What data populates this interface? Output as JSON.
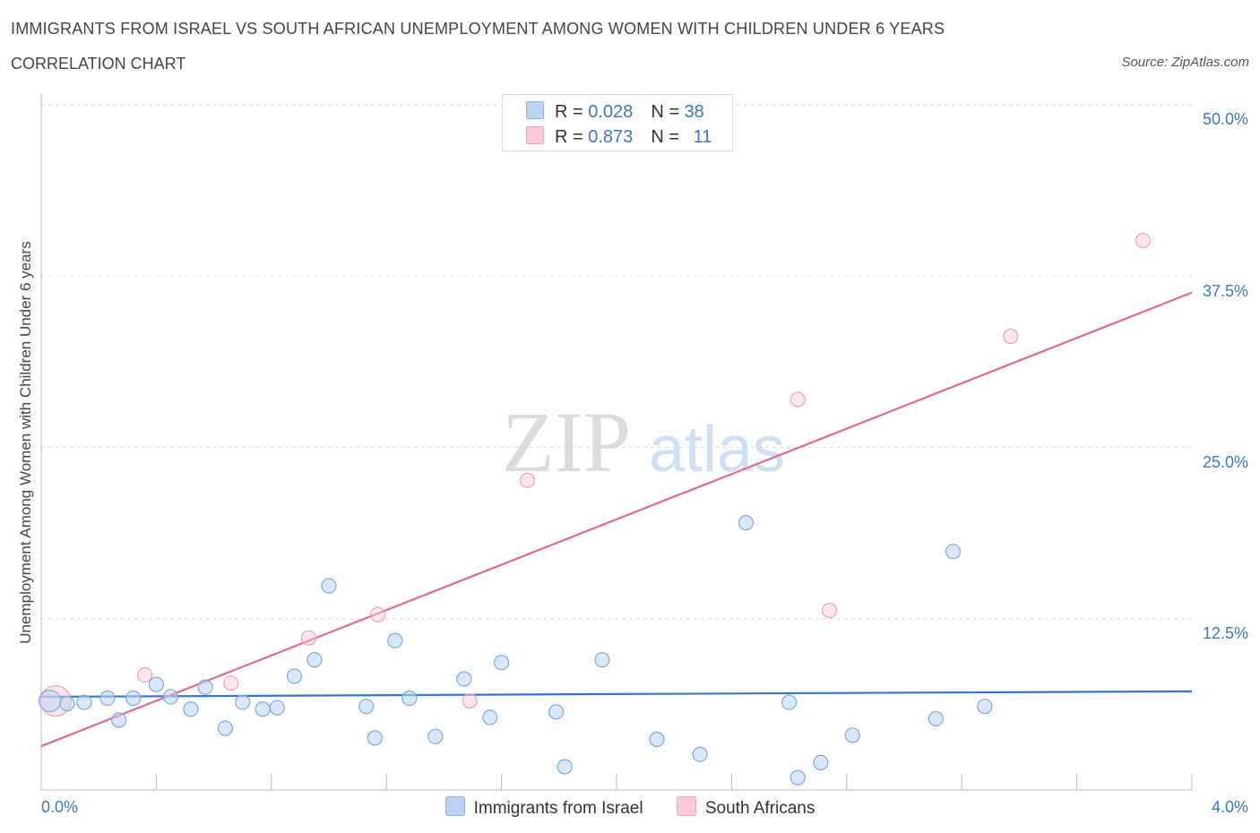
{
  "title": "IMMIGRANTS FROM ISRAEL VS SOUTH AFRICAN UNEMPLOYMENT AMONG WOMEN WITH CHILDREN UNDER 6 YEARS",
  "subtitle": "CORRELATION CHART",
  "source": "Source: ZipAtlas.com",
  "legend": {
    "rows": [
      {
        "r_label": "R = ",
        "r_value": "0.028",
        "n_label": "N = ",
        "n_value": "38"
      },
      {
        "r_label": "R = ",
        "r_value": "0.873",
        "n_label": "N = ",
        "n_value": "11"
      }
    ]
  },
  "watermark": {
    "zip": "ZIP",
    "atlas": "atlas"
  },
  "chart_data": {
    "type": "scatter",
    "title": "IMMIGRANTS FROM ISRAEL VS SOUTH AFRICAN UNEMPLOYMENT AMONG WOMEN WITH CHILDREN UNDER 6 YEARS",
    "xlabel": "",
    "ylabel": "Unemployment Among Women with Children Under 6 years",
    "xlim": [
      0,
      4
    ],
    "ylim": [
      0,
      50
    ],
    "x_tick_labels": [
      "0.0%",
      "4.0%"
    ],
    "y_tick_labels": [
      "12.5%",
      "25.0%",
      "37.5%",
      "50.0%"
    ],
    "y_ticks": [
      12.5,
      25,
      37.5,
      50
    ],
    "grid": true,
    "colors": {
      "israel": "#6fa1e3",
      "israel_line": "#3576cc",
      "south_africa": "#f2a1b9",
      "south_africa_line": "#e3688f"
    },
    "series": [
      {
        "name": "Immigrants from Israel",
        "color": "#6fa1e3",
        "trend": [
          [
            0,
            6.8
          ],
          [
            4,
            7.2
          ]
        ],
        "points": [
          [
            0.03,
            6.5
          ],
          [
            0.09,
            6.3
          ],
          [
            0.15,
            6.4
          ],
          [
            0.23,
            6.7
          ],
          [
            0.27,
            5.1
          ],
          [
            0.32,
            6.7
          ],
          [
            0.4,
            7.7
          ],
          [
            0.45,
            6.8
          ],
          [
            0.52,
            5.9
          ],
          [
            0.57,
            7.5
          ],
          [
            0.64,
            4.5
          ],
          [
            0.7,
            6.4
          ],
          [
            0.77,
            5.9
          ],
          [
            0.82,
            6.0
          ],
          [
            0.88,
            8.3
          ],
          [
            0.95,
            9.5
          ],
          [
            1.0,
            14.9
          ],
          [
            1.13,
            6.1
          ],
          [
            1.16,
            3.8
          ],
          [
            1.23,
            10.9
          ],
          [
            1.28,
            6.7
          ],
          [
            1.37,
            3.9
          ],
          [
            1.47,
            8.1
          ],
          [
            1.56,
            5.3
          ],
          [
            1.6,
            9.3
          ],
          [
            1.79,
            5.7
          ],
          [
            1.82,
            1.7
          ],
          [
            1.95,
            9.5
          ],
          [
            2.14,
            3.7
          ],
          [
            2.29,
            2.6
          ],
          [
            2.45,
            19.5
          ],
          [
            2.6,
            6.4
          ],
          [
            2.63,
            0.9
          ],
          [
            2.71,
            2.0
          ],
          [
            2.82,
            4.0
          ],
          [
            3.11,
            5.2
          ],
          [
            3.17,
            17.4
          ],
          [
            3.28,
            6.1
          ]
        ]
      },
      {
        "name": "South Africans",
        "color": "#f2a1b9",
        "trend": [
          [
            0,
            3.2
          ],
          [
            4,
            36.3
          ]
        ],
        "points": [
          [
            0.05,
            6.5
          ],
          [
            0.36,
            8.4
          ],
          [
            0.66,
            7.8
          ],
          [
            0.93,
            11.1
          ],
          [
            1.17,
            12.8
          ],
          [
            1.49,
            6.5
          ],
          [
            1.69,
            22.6
          ],
          [
            2.63,
            28.5
          ],
          [
            2.74,
            13.1
          ],
          [
            3.37,
            33.1
          ],
          [
            3.83,
            40.1
          ]
        ]
      }
    ]
  }
}
